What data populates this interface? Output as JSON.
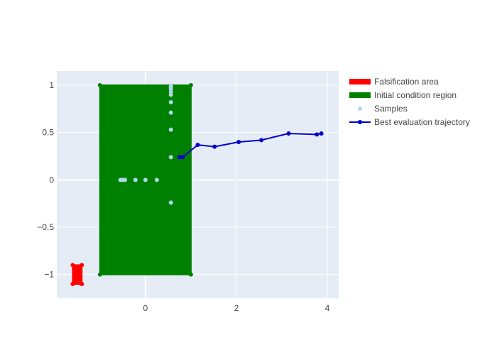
{
  "chart_data": {
    "type": "scatter",
    "xlim": [
      -1.95,
      4.25
    ],
    "ylim": [
      -1.25,
      1.15
    ],
    "grid": true,
    "legend_placement": "top-right",
    "x_ticks": [
      {
        "value": 0,
        "label": "0"
      },
      {
        "value": 2,
        "label": "2"
      },
      {
        "value": 4,
        "label": "4"
      }
    ],
    "y_ticks": [
      {
        "value": 1,
        "label": "1"
      },
      {
        "value": 0.5,
        "label": "0.5"
      },
      {
        "value": 0,
        "label": "0"
      },
      {
        "value": -0.5,
        "label": "−0.5"
      },
      {
        "value": -1,
        "label": "−1"
      }
    ],
    "series": [
      {
        "name": "Falsification area",
        "kind": "filled-region",
        "color": "#ff0000",
        "x": [
          -1.6,
          -1.4,
          -1.4,
          -1.6,
          -1.6
        ],
        "y": [
          -0.9,
          -0.9,
          -1.1,
          -1.1,
          -0.9
        ]
      },
      {
        "name": "Initial condition region",
        "kind": "filled-region",
        "color": "#008000",
        "x": [
          -1,
          1,
          1,
          -1,
          -1
        ],
        "y": [
          1,
          1,
          -1,
          -1,
          1
        ]
      },
      {
        "name": "Samples",
        "kind": "markers",
        "color": "#add8e6",
        "x": [
          -0.55,
          -0.5,
          -0.45,
          -0.22,
          0.0,
          0.25,
          0.56,
          0.56,
          0.56,
          0.56,
          0.56,
          0.56,
          0.56,
          0.56,
          0.56,
          0.56,
          0.56
        ],
        "y": [
          0,
          0,
          0,
          0,
          0,
          0,
          -0.24,
          0.24,
          0.53,
          0.71,
          0.82,
          0.9,
          0.93,
          0.96,
          0.97,
          0.98,
          0.99
        ]
      },
      {
        "name": "Best evaluation trajectory",
        "kind": "lines+markers",
        "color": "#0000cd",
        "x": [
          0.75,
          0.82,
          1.15,
          1.52,
          2.05,
          2.55,
          3.15,
          3.77,
          3.87
        ],
        "y": [
          0.24,
          0.24,
          0.37,
          0.35,
          0.4,
          0.42,
          0.49,
          0.48,
          0.49
        ]
      }
    ]
  }
}
